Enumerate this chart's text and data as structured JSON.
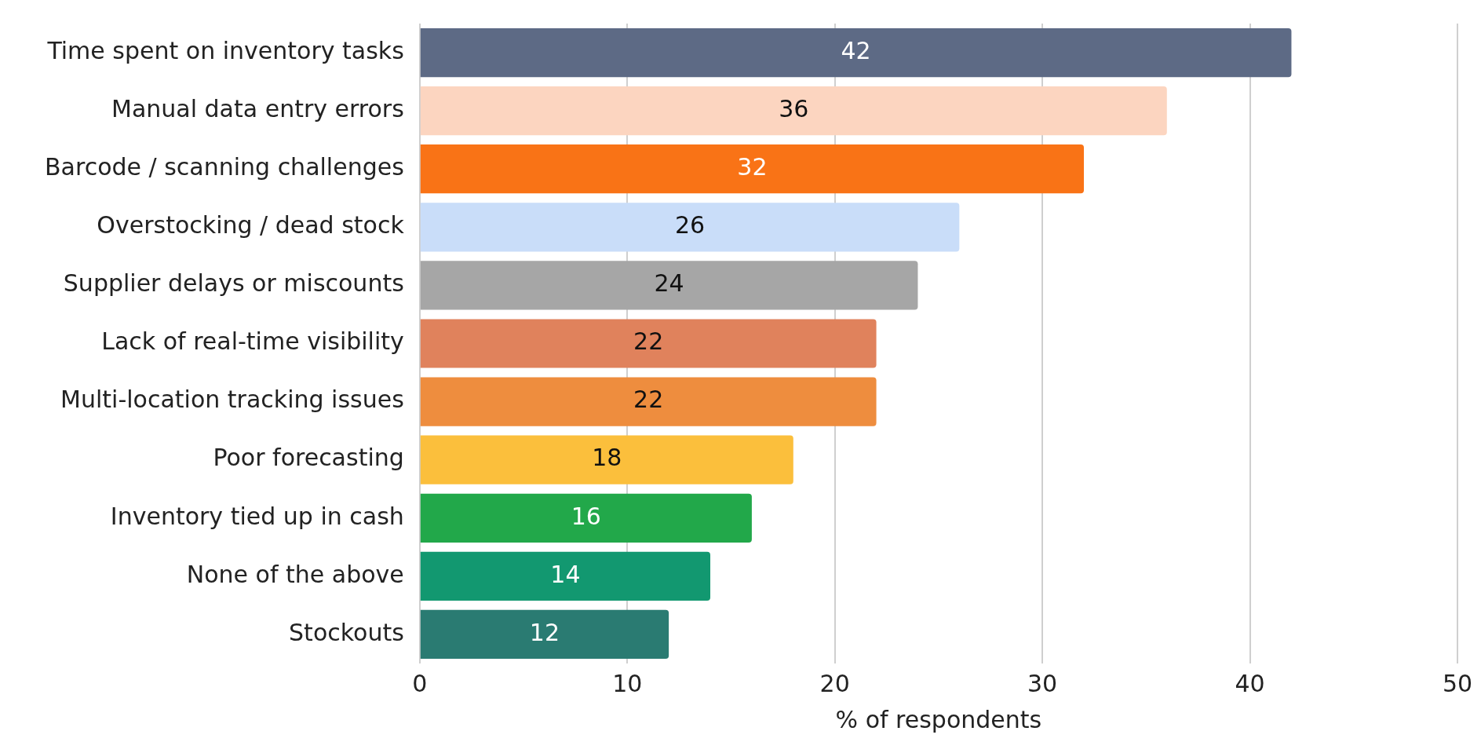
{
  "chart_data": {
    "type": "bar",
    "orientation": "horizontal",
    "xlabel": "% of respondents",
    "categories": [
      "Time spent on inventory tasks",
      "Manual data entry errors",
      "Barcode / scanning challenges",
      "Overstocking / dead stock",
      "Supplier delays or miscounts",
      "Lack of real-time visibility",
      "Multi-location tracking issues",
      "Poor forecasting",
      "Inventory tied up in cash",
      "None of the above",
      "Stockouts"
    ],
    "values": [
      42,
      36,
      32,
      26,
      24,
      22,
      22,
      18,
      16,
      14,
      12
    ],
    "colors": [
      "#5d6a85",
      "#fcd5c0",
      "#f97316",
      "#c9ddf9",
      "#a6a6a6",
      "#e0825c",
      "#ee8d3e",
      "#fbbf3c",
      "#22a84a",
      "#129870",
      "#2a7b72"
    ],
    "xlim": [
      0,
      50
    ],
    "xticks": [
      0,
      10,
      20,
      30,
      40,
      50
    ],
    "grid": "x",
    "data_labels": true,
    "legend": false
  }
}
